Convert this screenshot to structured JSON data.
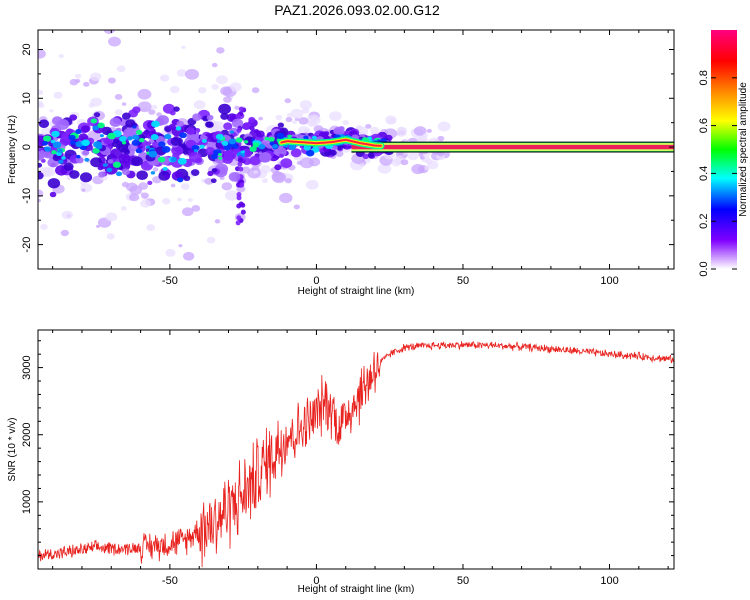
{
  "title": "PAZ1.2026.093.02.00.G12",
  "colors": {
    "snr_line": "#e8221e",
    "track": "#ee1e5a",
    "frame": "#000000"
  },
  "chart_data": [
    {
      "type": "heatmap",
      "title": "PAZ1.2026.093.02.00.G12",
      "xlabel": "Height of straight line (km)",
      "ylabel": "Frequency (Hz)",
      "xlim": [
        -95,
        122
      ],
      "ylim": [
        -25,
        24
      ],
      "x_ticks": [
        -50,
        0,
        50,
        100
      ],
      "y_ticks": [
        -20,
        -10,
        0,
        10,
        20
      ],
      "colorbar": {
        "label": "Normalized spectral amplitude",
        "range": [
          0,
          1
        ],
        "ticks": [
          "0.0",
          "0.2",
          "0.4",
          "0.6",
          "0.8"
        ],
        "colormap": [
          "#ffffff",
          "#8000ff",
          "#0000ff",
          "#00ffff",
          "#00ff00",
          "#ffff00",
          "#ff8000",
          "#ff0000",
          "#ff00ff"
        ]
      },
      "description_of_content": "Broad scattered low-amplitude energy spread over roughly +/-20 Hz for heights below about -25 km, converging to a single narrow high-amplitude line near 0 Hz above about 20 km.",
      "peak_track": {
        "x": [
          -95,
          -80,
          -60,
          -40,
          -25,
          -15,
          -10,
          -5,
          0,
          5,
          10,
          15,
          20,
          30,
          50,
          80,
          122
        ],
        "y": [
          0,
          0.5,
          -0.5,
          0.5,
          0.5,
          0.5,
          1.2,
          1.0,
          0.8,
          1.0,
          1.5,
          0.8,
          0.3,
          0.1,
          0.0,
          0.0,
          0.0
        ]
      }
    },
    {
      "type": "line",
      "xlabel": "Height of straight line (km)",
      "ylabel": "SNR (10 * v/v)",
      "xlim": [
        -95,
        122
      ],
      "ylim": [
        0,
        3560
      ],
      "x_ticks": [
        -50,
        0,
        50,
        100
      ],
      "y_ticks": [
        1000,
        2000,
        3000
      ],
      "series": [
        {
          "x": [
            -95,
            -85,
            -75,
            -65,
            -55,
            -45,
            -40,
            -35,
            -30,
            -25,
            -20,
            -15,
            -12,
            -10,
            -8,
            -5,
            -2,
            0,
            3,
            5,
            8,
            10,
            15,
            20,
            25,
            30,
            40,
            50,
            60,
            70,
            80,
            90,
            100,
            110,
            122
          ],
          "values": [
            200,
            250,
            320,
            300,
            350,
            420,
            600,
            700,
            900,
            1100,
            1400,
            1700,
            1900,
            2000,
            2000,
            2100,
            2200,
            2300,
            2500,
            2400,
            2100,
            2300,
            2600,
            3000,
            3200,
            3300,
            3330,
            3340,
            3330,
            3310,
            3280,
            3240,
            3200,
            3170,
            3120
          ]
        }
      ]
    }
  ]
}
